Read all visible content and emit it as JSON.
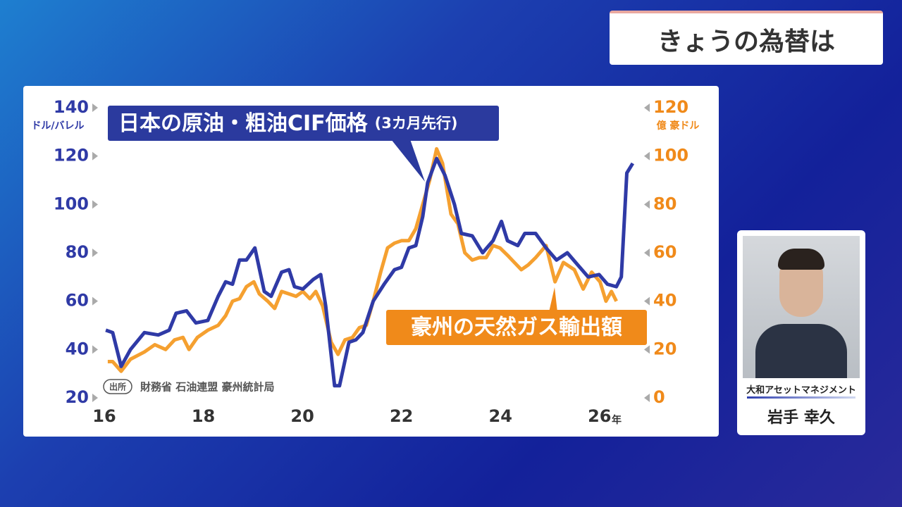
{
  "header": {
    "title": "きょうの為替は"
  },
  "presenter": {
    "organization": "大和アセットマネジメント",
    "name": "岩手 幸久"
  },
  "chart_data": {
    "type": "line",
    "annotation": "(3カ月先行)",
    "y_label": "ドル/バレル",
    "y2_label": "億 豪ドル",
    "x_label": "年",
    "source_tag": "出所",
    "source": "財務省 石油連盟 豪州統計局",
    "xlim": [
      16,
      26.7
    ],
    "xticks": [
      16,
      18,
      20,
      22,
      24,
      26
    ],
    "ylim": [
      20,
      140
    ],
    "yticks": [
      20,
      40,
      60,
      80,
      100,
      120,
      140
    ],
    "y2lim": [
      0,
      120
    ],
    "y2ticks": [
      0,
      20,
      40,
      60,
      80,
      100,
      120
    ],
    "grid": false,
    "series": [
      {
        "name": "日本の原油・粗油CIF価格",
        "color": "#2f3aa6",
        "axis": "y",
        "x": [
          16.03,
          16.17,
          16.34,
          16.53,
          16.81,
          17.09,
          17.31,
          17.45,
          17.66,
          17.85,
          18.09,
          18.3,
          18.45,
          18.59,
          18.73,
          18.87,
          19.04,
          19.23,
          19.37,
          19.58,
          19.73,
          19.84,
          20.01,
          20.22,
          20.37,
          20.47,
          20.65,
          20.75,
          20.94,
          21.08,
          21.22,
          21.43,
          21.65,
          21.86,
          22.0,
          22.15,
          22.29,
          22.43,
          22.53,
          22.71,
          22.88,
          23.07,
          23.21,
          23.43,
          23.64,
          23.85,
          24.02,
          24.14,
          24.35,
          24.49,
          24.71,
          24.92,
          25.13,
          25.35,
          25.56,
          25.77,
          25.99,
          26.16,
          26.34,
          26.44,
          26.55,
          26.67
        ],
        "values": [
          48,
          47,
          33,
          40,
          47,
          46,
          48,
          55,
          56,
          51,
          52,
          62,
          68,
          67,
          77,
          77,
          82,
          64,
          62,
          72,
          73,
          66,
          65,
          69,
          71,
          58,
          25,
          25,
          43,
          44,
          47,
          60,
          67,
          73,
          74,
          82,
          83,
          95,
          109,
          119,
          112,
          100,
          88,
          87,
          80,
          85,
          93,
          85,
          83,
          88,
          88,
          82,
          77,
          80,
          75,
          70,
          71,
          67,
          66,
          70,
          113,
          117
        ]
      },
      {
        "name": "豪州の天然ガス輸出額",
        "color": "#f5a030",
        "axis": "y2",
        "x": [
          16.07,
          16.17,
          16.34,
          16.53,
          16.81,
          17.02,
          17.24,
          17.42,
          17.59,
          17.71,
          17.88,
          18.09,
          18.3,
          18.45,
          18.59,
          18.73,
          18.87,
          19.02,
          19.13,
          19.3,
          19.44,
          19.58,
          19.73,
          19.87,
          20.01,
          20.15,
          20.27,
          20.41,
          20.58,
          20.72,
          20.86,
          21.01,
          21.15,
          21.29,
          21.43,
          21.58,
          21.72,
          21.86,
          22.0,
          22.15,
          22.29,
          22.43,
          22.57,
          22.71,
          22.83,
          23.0,
          23.14,
          23.28,
          23.43,
          23.57,
          23.71,
          23.85,
          23.99,
          24.14,
          24.28,
          24.42,
          24.56,
          24.71,
          24.92,
          25.1,
          25.27,
          25.49,
          25.67,
          25.84,
          26.01,
          26.13,
          26.24,
          26.34
        ],
        "values": [
          15,
          15,
          11,
          16,
          19,
          22,
          20,
          24,
          25,
          20,
          25,
          28,
          30,
          34,
          40,
          41,
          46,
          48,
          43,
          40,
          37,
          44,
          43,
          42,
          44,
          41,
          44,
          38,
          23,
          18,
          24,
          25,
          29,
          30,
          40,
          52,
          62,
          64,
          65,
          65,
          70,
          80,
          90,
          103,
          97,
          76,
          72,
          60,
          57,
          58,
          58,
          63,
          62,
          59,
          56,
          53,
          55,
          58,
          63,
          48,
          56,
          53,
          45,
          52,
          48,
          40,
          44,
          40
        ]
      }
    ]
  }
}
